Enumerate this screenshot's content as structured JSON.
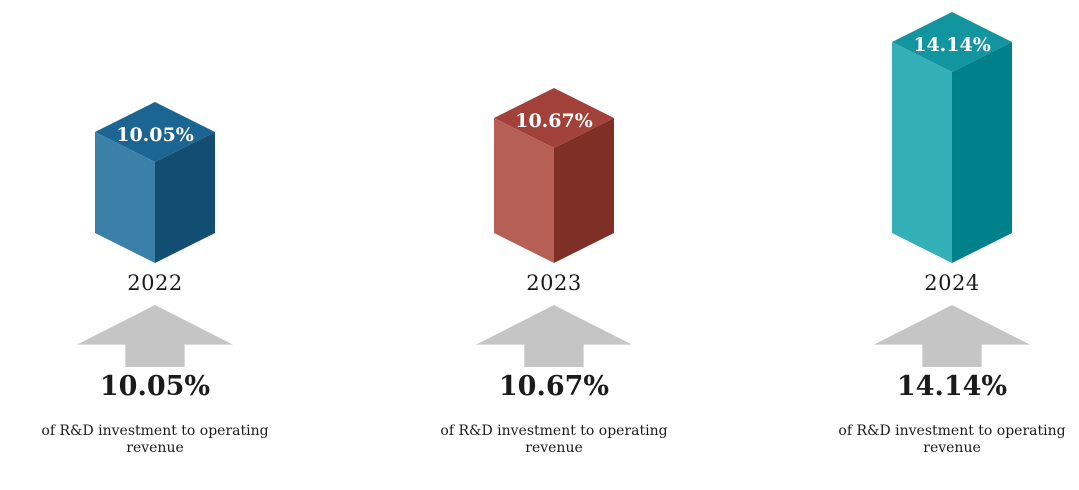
{
  "page": {
    "background": "#ffffff"
  },
  "chart_data": {
    "type": "bar",
    "title": "",
    "xlabel": "",
    "ylabel": "",
    "categories": [
      "2022",
      "2023",
      "2024"
    ],
    "values": [
      10.05,
      10.67,
      14.14
    ],
    "value_labels": [
      "10.05%",
      "10.67%",
      "14.14%"
    ],
    "unit": "%",
    "caption": "of R&D investment to operating revenue",
    "legend_position": "none",
    "grid": false,
    "style": "3d-cuboid-columns",
    "bar_colors": [
      "#1c6492",
      "#a2413a",
      "#13959f"
    ]
  },
  "groups": [
    {
      "year": "2022",
      "value_label": "10.05%",
      "description": "of R&D investment to operating revenue",
      "face_top": "#1c6492",
      "face_left": "#3a80a8",
      "face_right": "#124e72"
    },
    {
      "year": "2023",
      "value_label": "10.67%",
      "description": "of R&D investment to operating revenue",
      "face_top": "#a2413a",
      "face_left": "#b65f55",
      "face_right": "#7e2f26"
    },
    {
      "year": "2024",
      "value_label": "14.14%",
      "description": "of R&D investment to operating revenue",
      "face_top": "#13959f",
      "face_left": "#35afb7",
      "face_right": "#00808a"
    }
  ],
  "styles": {
    "arrow_color": "#c5c5c5",
    "text_color": "#1b1b1b",
    "top_label_color": "#ffffff"
  }
}
